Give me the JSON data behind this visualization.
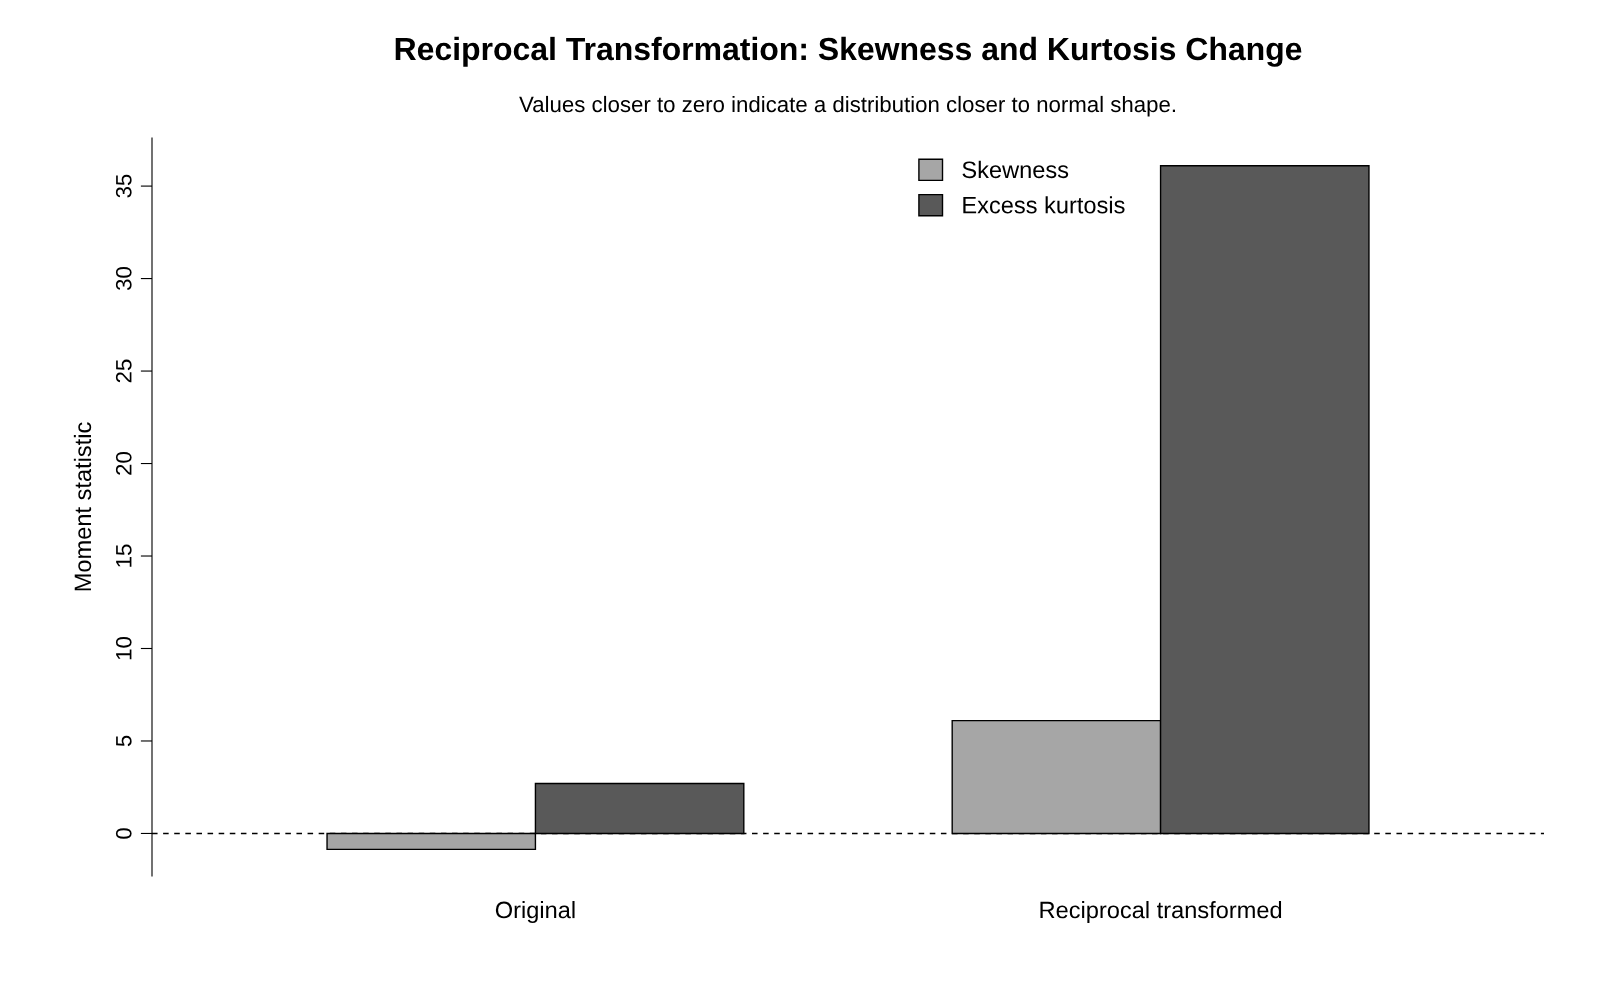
{
  "chart_data": {
    "type": "bar",
    "title": "Reciprocal Transformation: Skewness and Kurtosis Change",
    "subtitle": "Values closer to zero indicate a distribution closer to normal shape.",
    "ylabel": "Moment statistic",
    "categories": [
      "Original",
      "Reciprocal transformed"
    ],
    "series": [
      {
        "name": "Skewness",
        "color": "#a6a6a6",
        "values": [
          -0.86,
          6.1
        ]
      },
      {
        "name": "Excess kurtosis",
        "color": "#595959",
        "values": [
          2.7,
          36.1
        ]
      }
    ],
    "ylim": [
      -2.3,
      37.6
    ],
    "yticks": [
      0,
      5,
      10,
      15,
      20,
      25,
      30,
      35
    ],
    "ref_lines": [
      {
        "axis": "y",
        "value": 0,
        "line_style": "dashed",
        "color": "#000000"
      }
    ],
    "grid": false,
    "legend": "top right"
  }
}
